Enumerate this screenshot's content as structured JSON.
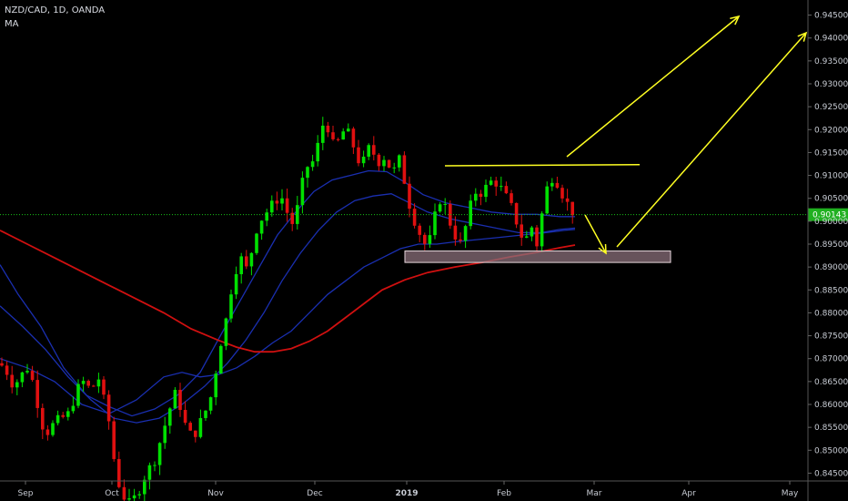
{
  "header": {
    "title": "NZD/CAD, 1D, OANDA",
    "indicator": "MA"
  },
  "colors": {
    "background": "#000000",
    "up": "#00e000",
    "down": "#e01010",
    "ma_blue": "#1a2fb0",
    "ma_red": "#d01010",
    "annotation": "#ffff22",
    "price_line": "#18c018",
    "zone": "#8a6f7a"
  },
  "chart_data": {
    "type": "candlestick",
    "symbol": "NZD/CAD",
    "interval": "1D",
    "ylim": [
      0.8425,
      0.9475
    ],
    "y_ticks": [
      "0.94500",
      "0.94000",
      "0.93500",
      "0.93000",
      "0.92500",
      "0.92000",
      "0.91500",
      "0.91000",
      "0.90500",
      "0.90000",
      "0.89500",
      "0.89000",
      "0.88500",
      "0.88000",
      "0.87500",
      "0.87000",
      "0.86500",
      "0.86000",
      "0.85500",
      "0.85000",
      "0.84500"
    ],
    "x_ticks": [
      {
        "label": "Sep",
        "bold": false
      },
      {
        "label": "Oct",
        "bold": false
      },
      {
        "label": "Nov",
        "bold": false
      },
      {
        "label": "Dec",
        "bold": false
      },
      {
        "label": "2019",
        "bold": true
      },
      {
        "label": "Feb",
        "bold": false
      },
      {
        "label": "Mar",
        "bold": false
      },
      {
        "label": "Apr",
        "bold": false
      },
      {
        "label": "May",
        "bold": false
      }
    ],
    "last_price": "0.90143",
    "support_zone": [
      0.891,
      0.8935
    ],
    "resistance_level": 0.9122,
    "moving_averages": [
      {
        "color": "blue",
        "points": [
          [
            0,
            0.8905
          ],
          [
            20,
            0.884
          ],
          [
            45,
            0.877
          ],
          [
            70,
            0.868
          ],
          [
            95,
            0.862
          ],
          [
            120,
            0.8595
          ],
          [
            145,
            0.8575
          ],
          [
            170,
            0.859
          ],
          [
            195,
            0.862
          ],
          [
            220,
            0.867
          ],
          [
            245,
            0.876
          ],
          [
            265,
            0.883
          ],
          [
            285,
            0.89
          ],
          [
            305,
            0.897
          ],
          [
            325,
            0.902
          ],
          [
            345,
            0.9065
          ],
          [
            365,
            0.909
          ],
          [
            385,
            0.91
          ],
          [
            405,
            0.911
          ],
          [
            425,
            0.9108
          ],
          [
            445,
            0.9085
          ],
          [
            465,
            0.9058
          ],
          [
            490,
            0.904
          ],
          [
            515,
            0.903
          ],
          [
            540,
            0.902
          ],
          [
            565,
            0.9015
          ],
          [
            590,
            0.9015
          ],
          [
            615,
            0.901
          ],
          [
            632,
            0.901
          ]
        ]
      },
      {
        "color": "blue",
        "points": [
          [
            0,
            0.8815
          ],
          [
            25,
            0.877
          ],
          [
            50,
            0.872
          ],
          [
            75,
            0.866
          ],
          [
            100,
            0.861
          ],
          [
            125,
            0.857
          ],
          [
            150,
            0.856
          ],
          [
            175,
            0.857
          ],
          [
            200,
            0.86
          ],
          [
            225,
            0.864
          ],
          [
            250,
            0.869
          ],
          [
            270,
            0.874
          ],
          [
            290,
            0.88
          ],
          [
            310,
            0.887
          ],
          [
            330,
            0.893
          ],
          [
            350,
            0.898
          ],
          [
            370,
            0.902
          ],
          [
            390,
            0.9045
          ],
          [
            410,
            0.9055
          ],
          [
            430,
            0.906
          ],
          [
            450,
            0.904
          ],
          [
            470,
            0.902
          ],
          [
            495,
            0.9005
          ],
          [
            520,
            0.8995
          ],
          [
            545,
            0.8985
          ],
          [
            570,
            0.8975
          ],
          [
            595,
            0.8975
          ],
          [
            615,
            0.8982
          ],
          [
            632,
            0.8985
          ]
        ]
      },
      {
        "color": "blue",
        "points": [
          [
            0,
            0.87
          ],
          [
            30,
            0.868
          ],
          [
            60,
            0.865
          ],
          [
            90,
            0.86
          ],
          [
            120,
            0.858
          ],
          [
            150,
            0.861
          ],
          [
            180,
            0.866
          ],
          [
            200,
            0.867
          ],
          [
            220,
            0.866
          ],
          [
            240,
            0.8665
          ],
          [
            260,
            0.868
          ],
          [
            280,
            0.8705
          ],
          [
            300,
            0.8735
          ],
          [
            320,
            0.876
          ],
          [
            340,
            0.88
          ],
          [
            360,
            0.884
          ],
          [
            380,
            0.887
          ],
          [
            400,
            0.89
          ],
          [
            420,
            0.892
          ],
          [
            440,
            0.894
          ],
          [
            460,
            0.895
          ],
          [
            480,
            0.895
          ],
          [
            500,
            0.8955
          ],
          [
            525,
            0.896
          ],
          [
            550,
            0.8965
          ],
          [
            575,
            0.897
          ],
          [
            600,
            0.8975
          ],
          [
            620,
            0.898
          ],
          [
            632,
            0.8982
          ]
        ]
      },
      {
        "color": "red",
        "points": [
          [
            0,
            0.898
          ],
          [
            30,
            0.895
          ],
          [
            60,
            0.892
          ],
          [
            90,
            0.889
          ],
          [
            120,
            0.886
          ],
          [
            150,
            0.883
          ],
          [
            180,
            0.88
          ],
          [
            210,
            0.8765
          ],
          [
            240,
            0.874
          ],
          [
            260,
            0.8725
          ],
          [
            280,
            0.8715
          ],
          [
            300,
            0.8715
          ],
          [
            320,
            0.8722
          ],
          [
            340,
            0.8738
          ],
          [
            360,
            0.876
          ],
          [
            380,
            0.879
          ],
          [
            400,
            0.882
          ],
          [
            420,
            0.885
          ],
          [
            445,
            0.8872
          ],
          [
            470,
            0.8888
          ],
          [
            500,
            0.89
          ],
          [
            530,
            0.891
          ],
          [
            560,
            0.8922
          ],
          [
            590,
            0.8932
          ],
          [
            615,
            0.8942
          ],
          [
            632,
            0.8948
          ]
        ]
      }
    ],
    "candle_path": [
      [
        0,
        0.869
      ],
      [
        8,
        0.867
      ],
      [
        15,
        0.864
      ],
      [
        22,
        0.866
      ],
      [
        30,
        0.868
      ],
      [
        38,
        0.864
      ],
      [
        45,
        0.856
      ],
      [
        52,
        0.854
      ],
      [
        60,
        0.856
      ],
      [
        68,
        0.857
      ],
      [
        76,
        0.858
      ],
      [
        84,
        0.863
      ],
      [
        92,
        0.865
      ],
      [
        100,
        0.863
      ],
      [
        108,
        0.866
      ],
      [
        114,
        0.861
      ],
      [
        120,
        0.856
      ],
      [
        124,
        0.85
      ],
      [
        128,
        0.844
      ],
      [
        132,
        0.842
      ],
      [
        136,
        0.84
      ],
      [
        140,
        0.838
      ],
      [
        146,
        0.839
      ],
      [
        152,
        0.841
      ],
      [
        158,
        0.844
      ],
      [
        164,
        0.846
      ],
      [
        170,
        0.848
      ],
      [
        176,
        0.852
      ],
      [
        182,
        0.856
      ],
      [
        188,
        0.86
      ],
      [
        194,
        0.863
      ],
      [
        200,
        0.858
      ],
      [
        206,
        0.854
      ],
      [
        212,
        0.853
      ],
      [
        218,
        0.855
      ],
      [
        224,
        0.858
      ],
      [
        230,
        0.86
      ],
      [
        236,
        0.866
      ],
      [
        242,
        0.873
      ],
      [
        248,
        0.878
      ],
      [
        254,
        0.885
      ],
      [
        260,
        0.89
      ],
      [
        266,
        0.892
      ],
      [
        272,
        0.889
      ],
      [
        278,
        0.895
      ],
      [
        284,
        0.9
      ],
      [
        290,
        0.901
      ],
      [
        296,
        0.903
      ],
      [
        302,
        0.904
      ],
      [
        308,
        0.906
      ],
      [
        314,
        0.903
      ],
      [
        320,
        0.899
      ],
      [
        326,
        0.902
      ],
      [
        332,
        0.908
      ],
      [
        338,
        0.912
      ],
      [
        344,
        0.913
      ],
      [
        350,
        0.917
      ],
      [
        356,
        0.922
      ],
      [
        362,
        0.92
      ],
      [
        368,
        0.915
      ],
      [
        374,
        0.919
      ],
      [
        380,
        0.92
      ],
      [
        386,
        0.918
      ],
      [
        392,
        0.914
      ],
      [
        398,
        0.912
      ],
      [
        404,
        0.916
      ],
      [
        410,
        0.915
      ],
      [
        416,
        0.913
      ],
      [
        422,
        0.914
      ],
      [
        428,
        0.912
      ],
      [
        434,
        0.911
      ],
      [
        440,
        0.914
      ],
      [
        446,
        0.907
      ],
      [
        452,
        0.902
      ],
      [
        458,
        0.899
      ],
      [
        464,
        0.896
      ],
      [
        470,
        0.894
      ],
      [
        476,
        0.899
      ],
      [
        482,
        0.905
      ],
      [
        488,
        0.904
      ],
      [
        494,
        0.9
      ],
      [
        500,
        0.897
      ],
      [
        506,
        0.895
      ],
      [
        512,
        0.899
      ],
      [
        518,
        0.904
      ],
      [
        524,
        0.907
      ],
      [
        530,
        0.906
      ],
      [
        536,
        0.908
      ],
      [
        542,
        0.909
      ],
      [
        548,
        0.908
      ],
      [
        554,
        0.906
      ],
      [
        560,
        0.904
      ],
      [
        566,
        0.901
      ],
      [
        572,
        0.897
      ],
      [
        578,
        0.896
      ],
      [
        584,
        0.899
      ],
      [
        590,
        0.895
      ],
      [
        596,
        0.902
      ],
      [
        602,
        0.908
      ],
      [
        608,
        0.91
      ],
      [
        614,
        0.908
      ],
      [
        620,
        0.905
      ],
      [
        626,
        0.903
      ],
      [
        632,
        0.9014
      ]
    ]
  }
}
